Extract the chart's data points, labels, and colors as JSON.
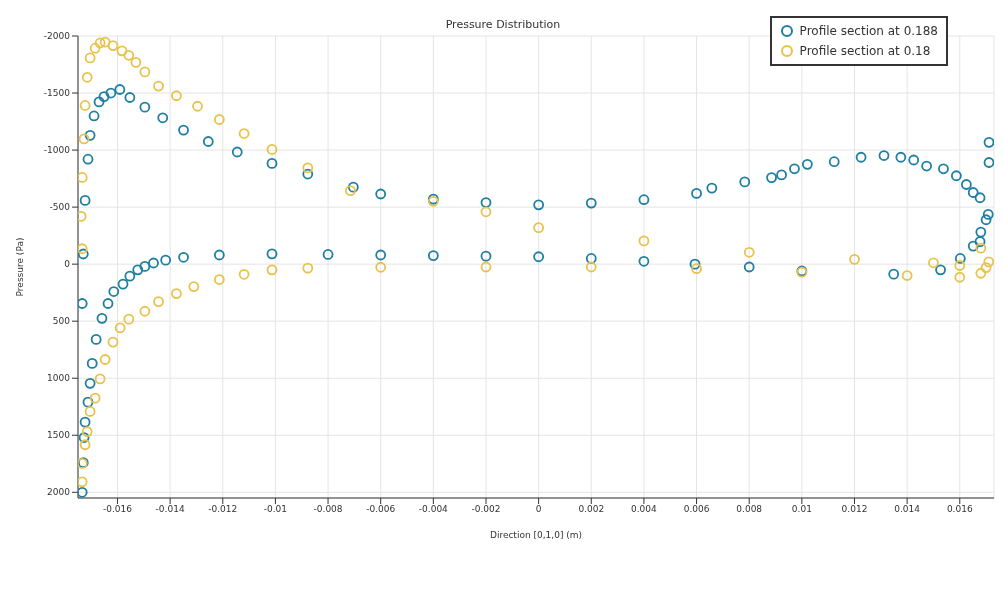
{
  "chart_data": {
    "type": "scatter",
    "title": "Pressure Distribution",
    "xlabel": "Direction [0,1,0] (m)",
    "ylabel": "Pressure (Pa)",
    "xlim": [
      -0.0175,
      0.0173
    ],
    "xticks": [
      -0.016,
      -0.014,
      -0.012,
      -0.01,
      -0.008,
      -0.006,
      -0.004,
      -0.002,
      0,
      0.002,
      0.004,
      0.006,
      0.008,
      0.01,
      0.012,
      0.014,
      0.016
    ],
    "ylim": [
      2050,
      -2000
    ],
    "yticks": [
      -2000,
      -1500,
      -1000,
      -500,
      0,
      500,
      1000,
      1500,
      2000
    ],
    "grid": true,
    "legend": "top right",
    "marker": "circle",
    "series": [
      {
        "name": "Profile section at 0.188",
        "color": "#1e7fa0",
        "x": [
          -0.01734,
          -0.0173,
          -0.01727,
          -0.01723,
          -0.01712,
          -0.01704,
          -0.01696,
          -0.01681,
          -0.01659,
          -0.01636,
          -0.01614,
          -0.01579,
          -0.01553,
          -0.01523,
          -0.01496,
          -0.01463,
          -0.01417,
          -0.01349,
          -0.01213,
          -0.01013,
          -0.008,
          -0.006,
          -0.004,
          -0.002,
          0,
          0.002,
          0.004,
          0.00594,
          0.008,
          0.01,
          0.01349,
          0.01527,
          0.01602,
          0.01651,
          0.01677,
          0.0168,
          0.017,
          0.01708,
          0.01677,
          0.01651,
          0.01625,
          0.01587,
          0.01538,
          0.01474,
          0.01425,
          0.01376,
          0.01312,
          0.01225,
          0.01123,
          0.01021,
          0.00972,
          0.00923,
          0.00885,
          0.00783,
          0.00658,
          0.006,
          0.004,
          0.002,
          0,
          -0.002,
          -0.004,
          -0.006,
          -0.00704,
          -0.00877,
          -0.01013,
          -0.01145,
          -0.01255,
          -0.01349,
          -0.01428,
          -0.01496,
          -0.01553,
          -0.01591,
          -0.01625,
          -0.01651,
          -0.0167,
          -0.01689,
          -0.01704,
          -0.01712,
          -0.01723,
          -0.0173,
          -0.01734,
          0.01711,
          0.01711
        ],
        "values": [
          2000,
          1740,
          1520,
          1385,
          1210,
          1045,
          870,
          660,
          475,
          345,
          240,
          175,
          105,
          50,
          20,
          -10,
          -35,
          -60,
          -80,
          -90,
          -85,
          -80,
          -75,
          -70,
          -65,
          -50,
          -25,
          0,
          25,
          60,
          88,
          50,
          -50,
          -158,
          -197,
          -281,
          -389,
          -436,
          -582,
          -628,
          -698,
          -775,
          -836,
          -860,
          -913,
          -937,
          -952,
          -937,
          -898,
          -875,
          -836,
          -782,
          -759,
          -721,
          -667,
          -620,
          -565,
          -535,
          -520,
          -540,
          -570,
          -615,
          -675,
          -790,
          -883,
          -983,
          -1075,
          -1175,
          -1283,
          -1376,
          -1461,
          -1531,
          -1500,
          -1469,
          -1422,
          -1299,
          -1129,
          -920,
          -559,
          -89,
          345,
          -1068,
          -891
        ]
      },
      {
        "name": "Profile section at 0.18",
        "color": "#e8c24a",
        "x": [
          -0.01734,
          -0.01738,
          -0.01734,
          -0.01727,
          -0.01723,
          -0.01715,
          -0.01704,
          -0.01685,
          -0.01666,
          -0.01647,
          -0.01617,
          -0.01583,
          -0.01557,
          -0.0153,
          -0.01496,
          -0.01444,
          -0.01376,
          -0.01296,
          -0.01213,
          -0.01119,
          -0.01013,
          -0.00877,
          -0.00715,
          -0.004,
          -0.002,
          0,
          0.004,
          0.008,
          0.012,
          0.015,
          0.016,
          0.0168,
          0.0171,
          0.017,
          0.0168,
          0.016,
          0.014,
          0.01,
          0.006,
          0.002,
          -0.002,
          -0.006,
          -0.00877,
          -0.01013,
          -0.01119,
          -0.01213,
          -0.0131,
          -0.01376,
          -0.01444,
          -0.01496,
          -0.01557,
          -0.0159,
          -0.01617,
          -0.01647,
          -0.01666,
          -0.01685,
          -0.01704,
          -0.01715,
          -0.01723,
          -0.01734,
          -0.01734
        ],
        "values": [
          -135,
          -419,
          -760,
          -1098,
          -1391,
          -1638,
          -1808,
          -1893,
          -1939,
          -1947,
          -1916,
          -1870,
          -1831,
          -1769,
          -1685,
          -1561,
          -1476,
          -1384,
          -1268,
          -1145,
          -1006,
          -844,
          -644,
          -551,
          -459,
          -320,
          -204,
          -104,
          -42,
          -12,
          12,
          -140,
          -20,
          30,
          80,
          115,
          100,
          70,
          40,
          25,
          25,
          27,
          35,
          50,
          89,
          135,
          197,
          258,
          328,
          413,
          482,
          559,
          683,
          836,
          1006,
          1175,
          1291,
          1468,
          1583,
          1747,
          1908
        ]
      }
    ]
  }
}
